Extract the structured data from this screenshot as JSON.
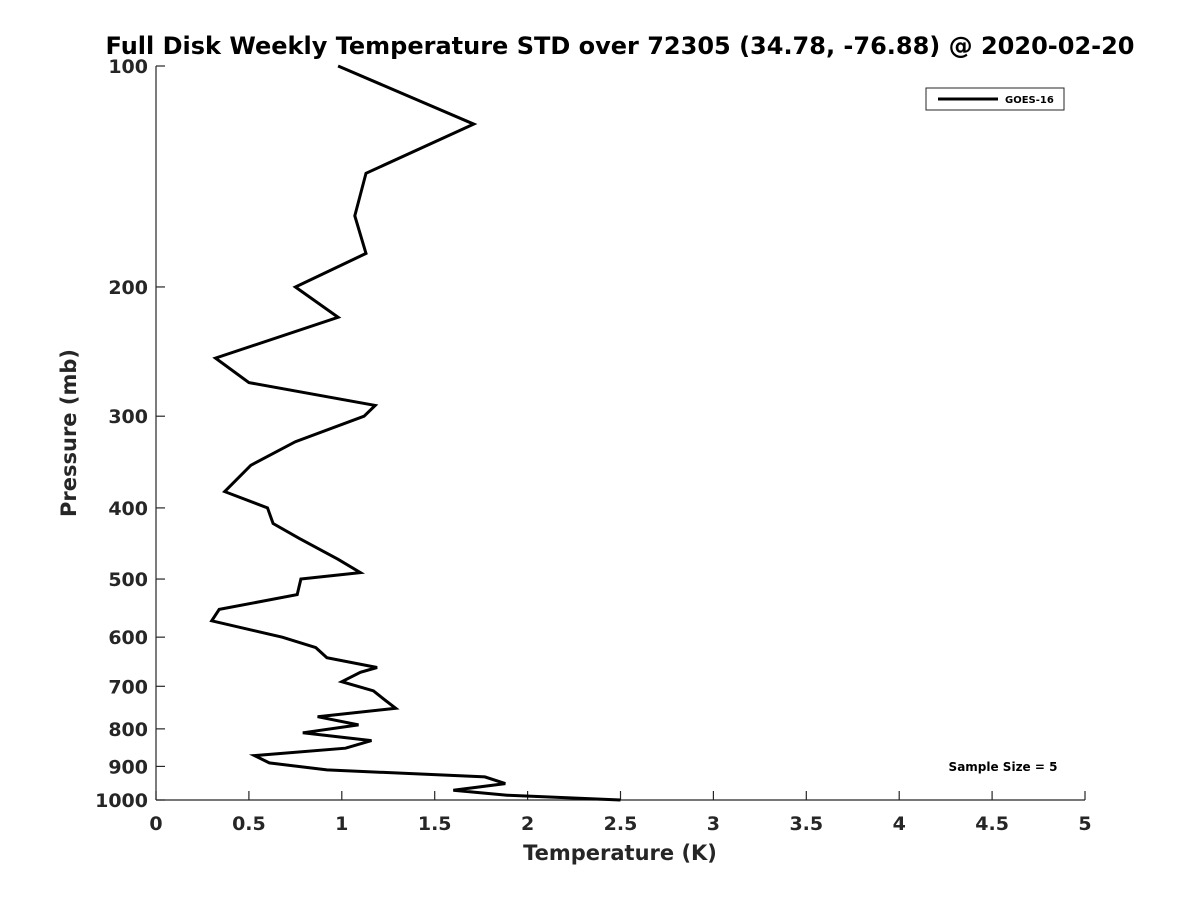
{
  "chart_data": {
    "type": "line",
    "title": "Full Disk Weekly Temperature STD over 72305 (34.78, -76.88) @ 2020-02-20",
    "xlabel": "Temperature (K)",
    "ylabel": "Pressure (mb)",
    "xlim": [
      0,
      5
    ],
    "ylim": [
      100,
      1000
    ],
    "y_scale": "log",
    "y_reversed": true,
    "x_ticks": [
      "0",
      "0.5",
      "1",
      "1.5",
      "2",
      "2.5",
      "3",
      "3.5",
      "4",
      "4.5",
      "5"
    ],
    "y_ticks": [
      "100",
      "200",
      "300",
      "400",
      "500",
      "600",
      "700",
      "800",
      "900",
      "1000"
    ],
    "grid": false,
    "legend": {
      "position": "top-right",
      "entries": [
        "GOES-16"
      ]
    },
    "annotation": "Sample Size = 5",
    "series": [
      {
        "name": "GOES-16",
        "color": "#000000",
        "points": [
          [
            0.98,
            100
          ],
          [
            1.71,
            120
          ],
          [
            1.13,
            140
          ],
          [
            1.07,
            160
          ],
          [
            1.13,
            180
          ],
          [
            0.75,
            200
          ],
          [
            0.98,
            220
          ],
          [
            0.32,
            250
          ],
          [
            0.5,
            270
          ],
          [
            1.18,
            290
          ],
          [
            1.12,
            300
          ],
          [
            0.75,
            325
          ],
          [
            0.51,
            350
          ],
          [
            0.37,
            380
          ],
          [
            0.6,
            400
          ],
          [
            0.63,
            420
          ],
          [
            0.77,
            440
          ],
          [
            0.98,
            470
          ],
          [
            1.1,
            490
          ],
          [
            0.78,
            500
          ],
          [
            0.76,
            525
          ],
          [
            0.34,
            550
          ],
          [
            0.3,
            570
          ],
          [
            0.68,
            600
          ],
          [
            0.86,
            620
          ],
          [
            0.92,
            640
          ],
          [
            1.19,
            660
          ],
          [
            1.1,
            670
          ],
          [
            1.0,
            690
          ],
          [
            1.17,
            710
          ],
          [
            1.23,
            730
          ],
          [
            1.29,
            750
          ],
          [
            0.87,
            770
          ],
          [
            1.09,
            790
          ],
          [
            0.79,
            810
          ],
          [
            1.16,
            830
          ],
          [
            1.02,
            850
          ],
          [
            0.53,
            870
          ],
          [
            0.61,
            890
          ],
          [
            0.92,
            910
          ],
          [
            1.77,
            930
          ],
          [
            1.88,
            950
          ],
          [
            1.6,
            970
          ],
          [
            1.89,
            985
          ],
          [
            2.5,
            1000
          ]
        ]
      }
    ]
  }
}
